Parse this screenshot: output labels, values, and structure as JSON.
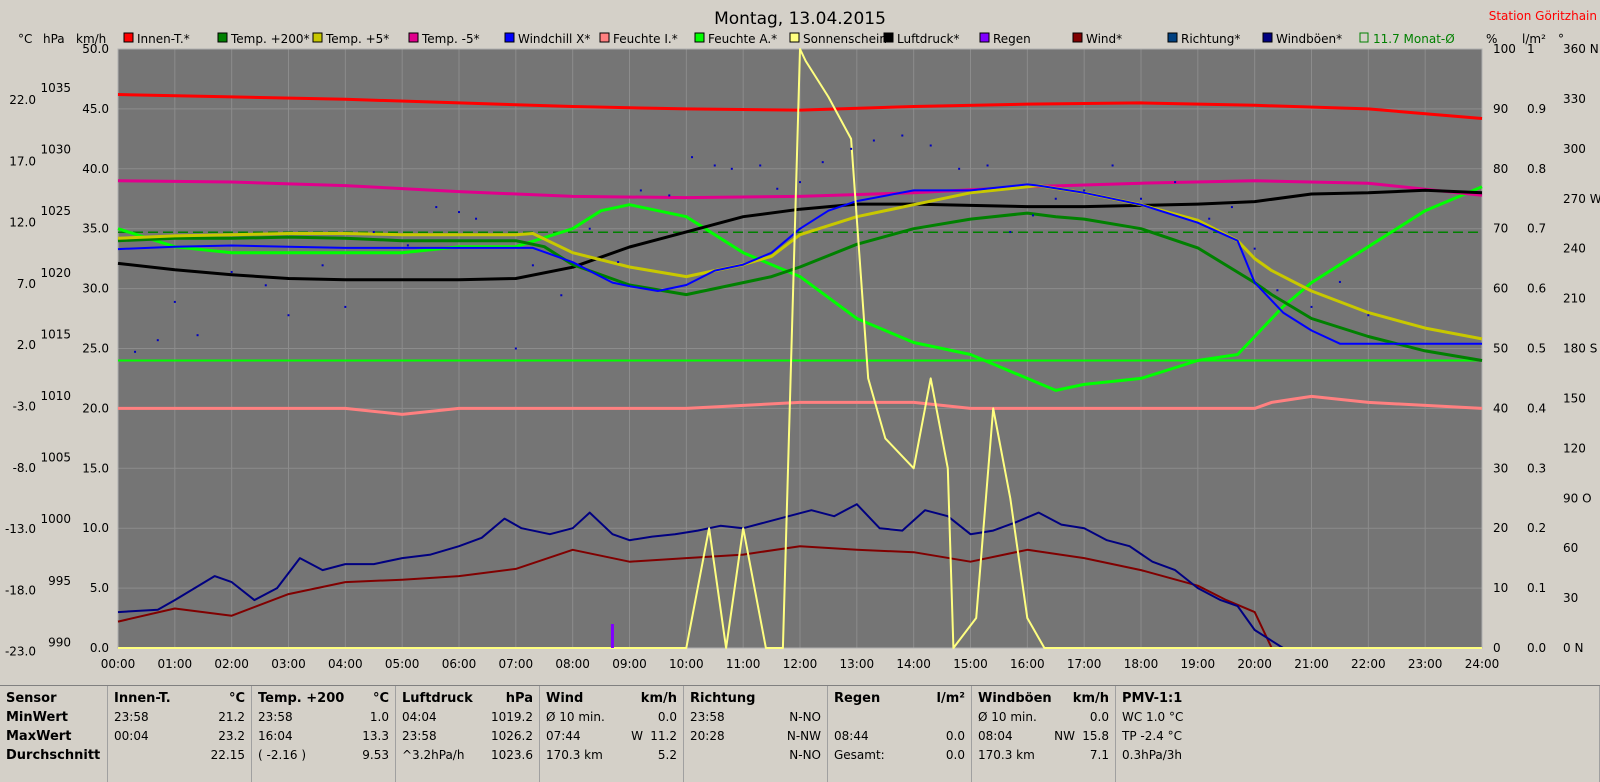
{
  "header": {
    "title": "Montag, 13.04.2015",
    "station": "Station Göritzhain"
  },
  "axis_units": {
    "celsius": "°C",
    "hpa": "hPa",
    "kmh": "km/h",
    "percent": "%",
    "lm2": "l/m²",
    "deg": "°"
  },
  "legend": [
    {
      "label": "Innen-T.*",
      "color": "#ff0000"
    },
    {
      "label": "Temp. +200*",
      "color": "#008000"
    },
    {
      "label": "Temp. +5*",
      "color": "#c8c800"
    },
    {
      "label": "Temp. -5*",
      "color": "#e0008c"
    },
    {
      "label": "Windchill X*",
      "color": "#0000ff"
    },
    {
      "label": "Feuchte I.*",
      "color": "#ff8080"
    },
    {
      "label": "Feuchte A.*",
      "color": "#00ff00"
    },
    {
      "label": "Sonnenschein",
      "color": "#ffff80"
    },
    {
      "label": "Luftdruck*",
      "color": "#000000"
    },
    {
      "label": "Regen",
      "color": "#8000ff"
    },
    {
      "label": "Wind*",
      "color": "#800000"
    },
    {
      "label": "Richtung*",
      "color": "#004080"
    },
    {
      "label": "Windböen*",
      "color": "#000080"
    },
    {
      "label": "11.7 Monat-Ø",
      "color": "#008000"
    }
  ],
  "chart_data": {
    "type": "line",
    "title": "Montag, 13.04.2015",
    "x_ticks": [
      "00:00",
      "01:00",
      "02:00",
      "03:00",
      "04:00",
      "05:00",
      "06:00",
      "07:00",
      "08:00",
      "09:00",
      "10:00",
      "11:00",
      "12:00",
      "13:00",
      "14:00",
      "15:00",
      "16:00",
      "17:00",
      "18:00",
      "19:00",
      "20:00",
      "21:00",
      "22:00",
      "23:00",
      "24:00"
    ],
    "axes": {
      "celsius": {
        "range": [
          -23,
          27
        ],
        "ticks": [
          "22.0",
          "17.0",
          "12.0",
          "7.0",
          "2.0",
          "-3.0",
          "-8.0",
          "-13.0",
          "-18.0",
          "-23.0"
        ]
      },
      "hpa": {
        "range": [
          990,
          1037.5
        ],
        "ticks": [
          "1035",
          "1030",
          "1025",
          "1020",
          "1015",
          "1010",
          "1005",
          "1000",
          "995",
          "990"
        ]
      },
      "kmh": {
        "range": [
          0,
          50
        ],
        "ticks": [
          "50.0",
          "45.0",
          "40.0",
          "35.0",
          "30.0",
          "25.0",
          "20.0",
          "15.0",
          "10.0",
          "5.0",
          "0.0"
        ]
      },
      "percent": {
        "range": [
          0,
          100
        ],
        "ticks": [
          "100",
          "90",
          "80",
          "70",
          "60",
          "50",
          "40",
          "30",
          "20",
          "10",
          "0"
        ]
      },
      "rain": {
        "range": [
          0,
          1
        ],
        "ticks": [
          "1",
          "0.9",
          "0.8",
          "0.7",
          "0.6",
          "0.5",
          "0.4",
          "0.3",
          "0.2",
          "0.1",
          "0.0"
        ]
      },
      "direction": {
        "range": [
          0,
          360
        ],
        "ticks": [
          "360 N",
          "330",
          "300",
          "270 W",
          "240",
          "210",
          "180 S",
          "150",
          "120",
          "90 O",
          "60",
          "30",
          "0 N"
        ]
      }
    },
    "series": [
      {
        "name": "Innen-T.*",
        "axis": "celsius",
        "color": "#ff0000",
        "x": [
          0,
          2,
          4,
          6,
          8,
          10,
          12,
          14,
          16,
          18,
          20,
          22,
          24
        ],
        "y": [
          23.2,
          23.0,
          22.8,
          22.5,
          22.2,
          22.0,
          21.9,
          22.2,
          22.4,
          22.5,
          22.3,
          22.0,
          21.2
        ]
      },
      {
        "name": "Temp. +200*",
        "axis": "celsius",
        "color": "#008000",
        "x": [
          0,
          1,
          2,
          3,
          4,
          5,
          6,
          7,
          7.5,
          8,
          9,
          10,
          11,
          11.5,
          12,
          13,
          14,
          15,
          16,
          16.5,
          17,
          18,
          19,
          20,
          20.3,
          21,
          22,
          23,
          24
        ],
        "y": [
          11.0,
          11.2,
          11.2,
          11.3,
          11.2,
          11.0,
          11.0,
          11.0,
          10.5,
          9.0,
          7.3,
          6.5,
          7.5,
          8.0,
          8.8,
          10.7,
          12.0,
          12.8,
          13.3,
          13.0,
          12.8,
          12.0,
          10.4,
          7.5,
          6.5,
          4.5,
          3.0,
          1.8,
          1.0
        ]
      },
      {
        "name": "Temp. +5*",
        "axis": "celsius",
        "color": "#c8c800",
        "x": [
          0,
          1,
          2,
          3,
          4,
          5,
          6,
          7,
          7.3,
          8,
          9,
          10,
          11,
          11.5,
          12,
          13,
          14,
          15,
          16,
          16.2,
          17,
          18,
          19,
          19.7,
          20,
          20.3,
          21,
          22,
          23,
          24
        ],
        "y": [
          11.2,
          11.4,
          11.5,
          11.6,
          11.6,
          11.5,
          11.5,
          11.5,
          11.6,
          10.0,
          8.8,
          8.0,
          9.0,
          9.7,
          11.5,
          13.0,
          14.0,
          15.0,
          15.5,
          15.6,
          15.0,
          14.0,
          12.7,
          11.0,
          9.5,
          8.5,
          6.8,
          5.0,
          3.7,
          2.8
        ]
      },
      {
        "name": "Temp. -5*",
        "axis": "celsius",
        "color": "#e0008c",
        "x": [
          0,
          2,
          4,
          6,
          8,
          10,
          12,
          14,
          16,
          18,
          20,
          22,
          24
        ],
        "y": [
          16.0,
          15.9,
          15.6,
          15.1,
          14.7,
          14.6,
          14.7,
          15.0,
          15.5,
          15.8,
          16.0,
          15.8,
          14.8
        ]
      },
      {
        "name": "Windchill X*",
        "axis": "celsius",
        "color": "#0000ff",
        "x": [
          0,
          1,
          2,
          3,
          4,
          5,
          6,
          7,
          7.3,
          8,
          8.7,
          9,
          9.5,
          10,
          10.5,
          11,
          11.5,
          12,
          12.5,
          13,
          14,
          15,
          16,
          16.2,
          17,
          18,
          19,
          19.7,
          20,
          20.5,
          21,
          21.5,
          22,
          23,
          24
        ],
        "y": [
          10.3,
          10.5,
          10.6,
          10.5,
          10.4,
          10.4,
          10.4,
          10.4,
          10.4,
          9.2,
          7.5,
          7.2,
          6.8,
          7.3,
          8.5,
          9.0,
          10.0,
          12.0,
          13.5,
          14.3,
          15.2,
          15.2,
          15.7,
          15.6,
          15.0,
          14.0,
          12.5,
          11.0,
          7.5,
          5.0,
          3.5,
          2.4,
          2.4,
          2.4,
          2.4
        ]
      },
      {
        "name": "Feuchte A.*",
        "axis": "percent",
        "color": "#00ff00",
        "x": [
          0,
          1,
          2,
          3,
          4,
          5,
          6,
          7,
          8,
          8.5,
          9,
          9.5,
          10,
          11,
          12,
          13,
          14,
          15,
          16,
          16.5,
          17,
          18,
          19,
          19.7,
          20,
          20.5,
          21,
          22,
          23,
          24
        ],
        "y": [
          70,
          67,
          66,
          66,
          66,
          66,
          67,
          67,
          70,
          73,
          74,
          73,
          72,
          66,
          62,
          55,
          51,
          49,
          45,
          43,
          44,
          45,
          48,
          49,
          52,
          57,
          61,
          67,
          73,
          77
        ]
      },
      {
        "name": "Feuchte I.*",
        "axis": "percent",
        "color": "#ff8080",
        "x": [
          0,
          2,
          4,
          5,
          6,
          8,
          10,
          12,
          14,
          15,
          16,
          18,
          19,
          20,
          20.3,
          21,
          22,
          24
        ],
        "y": [
          40,
          40,
          40,
          39,
          40,
          40,
          40,
          41,
          41,
          40,
          40,
          40,
          40,
          40,
          41,
          42,
          41,
          40
        ]
      },
      {
        "name": "Sonnenschein",
        "axis": "percent",
        "color": "#ffff80",
        "x": [
          0,
          10,
          10.4,
          10.7,
          11.0,
          11.4,
          11.7,
          12.0,
          12.1,
          12.5,
          12.9,
          13.2,
          13.5,
          14.0,
          14.3,
          14.6,
          14.7,
          15.1,
          15.4,
          15.7,
          16.0,
          16.3,
          24
        ],
        "y": [
          0,
          0,
          20,
          0,
          20,
          0,
          0,
          100,
          98,
          92,
          85,
          45,
          35,
          30,
          45,
          30,
          0,
          5,
          40,
          25,
          5,
          0,
          0
        ]
      },
      {
        "name": "Luftdruck*",
        "axis": "hpa",
        "color": "#000000",
        "x": [
          0,
          1,
          2,
          3,
          4,
          5,
          6,
          7,
          8,
          9,
          10,
          11,
          12,
          13,
          14,
          15,
          16,
          17,
          18,
          19,
          20,
          21,
          22,
          23,
          24
        ],
        "y": [
          1020.5,
          1020.0,
          1019.6,
          1019.3,
          1019.2,
          1019.2,
          1019.2,
          1019.3,
          1020.2,
          1021.8,
          1023.0,
          1024.2,
          1024.8,
          1025.2,
          1025.2,
          1025.1,
          1025.0,
          1025.0,
          1025.1,
          1025.2,
          1025.4,
          1026.0,
          1026.1,
          1026.3,
          1026.1
        ]
      },
      {
        "name": "Wind*",
        "axis": "kmh",
        "color": "#800000",
        "x": [
          0,
          1,
          2,
          3,
          4,
          5,
          6,
          7,
          8,
          9,
          10,
          11,
          12,
          13,
          14,
          15,
          16,
          17,
          18,
          19,
          19.5,
          20,
          20.3,
          24
        ],
        "y": [
          2.2,
          3.3,
          2.7,
          4.5,
          5.5,
          5.7,
          6.0,
          6.6,
          8.2,
          7.2,
          7.5,
          7.8,
          8.5,
          8.2,
          8.0,
          7.2,
          8.2,
          7.5,
          6.5,
          5.2,
          4.0,
          3.0,
          0,
          0
        ]
      },
      {
        "name": "Windböen*",
        "axis": "kmh",
        "color": "#000080",
        "x": [
          0,
          0.7,
          1,
          1.7,
          2,
          2.4,
          2.8,
          3.2,
          3.6,
          4,
          4.5,
          5,
          5.5,
          6,
          6.4,
          6.8,
          7.1,
          7.6,
          8,
          8.3,
          8.7,
          9,
          9.4,
          9.8,
          10.2,
          10.6,
          11,
          11.4,
          11.8,
          12.2,
          12.6,
          13,
          13.4,
          13.8,
          14.2,
          14.6,
          15,
          15.4,
          15.8,
          16.2,
          16.6,
          17,
          17.4,
          17.8,
          18.2,
          18.6,
          19,
          19.4,
          19.7,
          20,
          20.3,
          20.5,
          24
        ],
        "y": [
          3.0,
          3.2,
          4.0,
          6.0,
          5.5,
          4.0,
          5.0,
          7.5,
          6.5,
          7.0,
          7.0,
          7.5,
          7.8,
          8.5,
          9.2,
          10.8,
          10.0,
          9.5,
          10.0,
          11.3,
          9.5,
          9.0,
          9.3,
          9.5,
          9.8,
          10.2,
          10.0,
          10.5,
          11.0,
          11.5,
          11.0,
          12.0,
          10.0,
          9.8,
          11.5,
          11.0,
          9.5,
          9.8,
          10.5,
          11.3,
          10.3,
          10.0,
          9.0,
          8.5,
          7.2,
          6.5,
          5.0,
          4.0,
          3.5,
          1.5,
          0.6,
          0,
          0
        ]
      },
      {
        "name": "Regen",
        "axis": "rain",
        "color": "#8000ff",
        "x": [
          8.7
        ],
        "y": [
          0.04
        ]
      }
    ],
    "richtung_points": [
      [
        0.3,
        178
      ],
      [
        0.7,
        185
      ],
      [
        1.0,
        208
      ],
      [
        1.4,
        188
      ],
      [
        2.0,
        226
      ],
      [
        2.6,
        218
      ],
      [
        3.0,
        200
      ],
      [
        3.6,
        230
      ],
      [
        4.0,
        205
      ],
      [
        4.5,
        250
      ],
      [
        5.1,
        242
      ],
      [
        5.6,
        265
      ],
      [
        6.0,
        262
      ],
      [
        6.3,
        258
      ],
      [
        7.0,
        180
      ],
      [
        7.3,
        230
      ],
      [
        7.8,
        212
      ],
      [
        8.3,
        252
      ],
      [
        8.8,
        232
      ],
      [
        9.2,
        275
      ],
      [
        9.7,
        272
      ],
      [
        10.1,
        295
      ],
      [
        10.5,
        290
      ],
      [
        10.8,
        288
      ],
      [
        11.3,
        290
      ],
      [
        11.6,
        276
      ],
      [
        12.0,
        280
      ],
      [
        12.4,
        292
      ],
      [
        12.9,
        300
      ],
      [
        13.3,
        305
      ],
      [
        13.8,
        308
      ],
      [
        14.3,
        302
      ],
      [
        14.8,
        288
      ],
      [
        15.3,
        290
      ],
      [
        15.7,
        250
      ],
      [
        16.1,
        260
      ],
      [
        16.5,
        270
      ],
      [
        17.0,
        275
      ],
      [
        17.5,
        290
      ],
      [
        18.0,
        270
      ],
      [
        18.6,
        280
      ],
      [
        19.2,
        258
      ],
      [
        19.6,
        265
      ],
      [
        20.0,
        240
      ],
      [
        20.4,
        215
      ],
      [
        21.0,
        205
      ],
      [
        21.5,
        220
      ],
      [
        22.0,
        200
      ]
    ],
    "reference_lines": [
      {
        "name": "11.7 Monat-Ø",
        "axis": "celsius",
        "value": 11.7,
        "color": "#008000",
        "style": "dashed"
      },
      {
        "axis": "celsius",
        "value": 1.0,
        "color": "#000000",
        "style": "dashed"
      },
      {
        "axis": "percent",
        "value": 48,
        "color": "#00ff00",
        "style": "solid"
      }
    ]
  },
  "table": [
    {
      "title": "Sensor",
      "unit": "",
      "rows": [
        {
          "a": "MinWert",
          "b": "",
          "c": ""
        },
        {
          "a": "MaxWert",
          "b": "",
          "c": ""
        },
        {
          "a": "Durchschnitt",
          "b": "",
          "c": ""
        }
      ]
    },
    {
      "title": "Innen-T.",
      "unit": "°C",
      "rows": [
        {
          "a": "23:58",
          "b": "",
          "c": "21.2"
        },
        {
          "a": "00:04",
          "b": "",
          "c": "23.2"
        },
        {
          "a": "",
          "b": "",
          "c": "22.15"
        }
      ]
    },
    {
      "title": "Temp. +200",
      "unit": "°C",
      "rows": [
        {
          "a": "23:58",
          "b": "",
          "c": "1.0"
        },
        {
          "a": "16:04",
          "b": "",
          "c": "13.3"
        },
        {
          "a": "( -2.16 )",
          "b": "",
          "c": "9.53"
        }
      ]
    },
    {
      "title": "Luftdruck",
      "unit": "hPa",
      "rows": [
        {
          "a": "04:04",
          "b": "",
          "c": "1019.2"
        },
        {
          "a": "23:58",
          "b": "",
          "c": "1026.2"
        },
        {
          "a": "^3.2hPa/h",
          "b": "",
          "c": "1023.6"
        }
      ]
    },
    {
      "title": "Wind",
      "unit": "km/h",
      "rows": [
        {
          "a": "Ø 10 min.",
          "b": "",
          "c": "0.0"
        },
        {
          "a": "07:44",
          "b": "W",
          "c": "11.2"
        },
        {
          "a": "170.3 km",
          "b": "",
          "c": "5.2"
        }
      ]
    },
    {
      "title": "Richtung",
      "unit": "",
      "rows": [
        {
          "a": "23:58",
          "b": "",
          "c": "N-NO"
        },
        {
          "a": "20:28",
          "b": "",
          "c": "N-NW"
        },
        {
          "a": "",
          "b": "",
          "c": "N-NO"
        }
      ]
    },
    {
      "title": "Regen",
      "unit": "l/m²",
      "rows": [
        {
          "a": "",
          "b": "",
          "c": ""
        },
        {
          "a": "08:44",
          "b": "",
          "c": "0.0"
        },
        {
          "a": "Gesamt:",
          "b": "",
          "c": "0.0"
        }
      ]
    },
    {
      "title": "Windböen",
      "unit": "km/h",
      "rows": [
        {
          "a": "Ø 10 min.",
          "b": "",
          "c": "0.0"
        },
        {
          "a": "08:04",
          "b": "NW",
          "c": "15.8"
        },
        {
          "a": "170.3 km",
          "b": "",
          "c": "7.1"
        }
      ]
    },
    {
      "title": "PMV-1:1",
      "unit": "",
      "rows": [
        {
          "a": "WC 1.0 °C",
          "b": "",
          "c": ""
        },
        {
          "a": "TP -2.4 °C",
          "b": "",
          "c": ""
        },
        {
          "a": "0.3hPa/3h",
          "b": "",
          "c": ""
        }
      ]
    }
  ]
}
